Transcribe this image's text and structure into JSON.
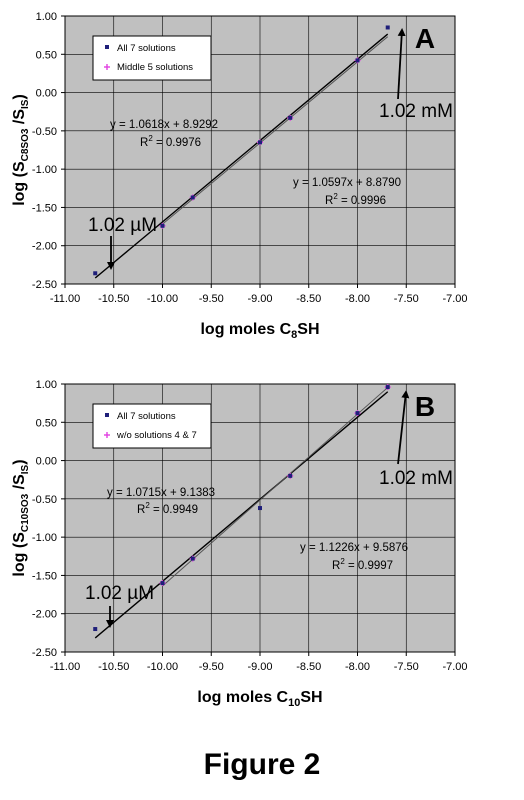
{
  "figure_label": "Figure 2",
  "colors": {
    "plot_bg": "#c0c0c0",
    "series_all": "#1f1f7a",
    "series_subset": "#e040e0",
    "fit_all": "#000000",
    "fit_subset": "#555555"
  },
  "chart_data": [
    {
      "type": "scatter",
      "panel_label": "A",
      "xlabel": "log moles C8SH",
      "ylabel": "log (SC8SO3 /SIS)",
      "xlim": [
        -11.0,
        -7.0
      ],
      "ylim": [
        -2.5,
        1.0
      ],
      "x_ticks": [
        "-11.00",
        "-10.50",
        "-10.00",
        "-9.50",
        "-9.00",
        "-8.50",
        "-8.00",
        "-7.50",
        "-7.00"
      ],
      "y_ticks": [
        "1.00",
        "0.50",
        "0.00",
        "-0.50",
        "-1.00",
        "-1.50",
        "-2.00",
        "-2.50"
      ],
      "grid": true,
      "legend_position": "top-left",
      "series": [
        {
          "name": "All 7 solutions",
          "x": [
            -10.69,
            -10.0,
            -9.69,
            -9.0,
            -8.69,
            -8.0,
            -7.69
          ],
          "y": [
            -2.36,
            -1.74,
            -1.37,
            -0.65,
            -0.33,
            0.42,
            0.85
          ]
        },
        {
          "name": "Middle 5 solutions",
          "x": [
            -10.0,
            -9.69,
            -9.0,
            -8.69,
            -8.0
          ],
          "y": [
            -1.74,
            -1.37,
            -0.65,
            -0.33,
            0.42
          ]
        }
      ],
      "fits": [
        {
          "equation": "y = 1.0618x + 8.9292",
          "r2_label": "R",
          "r2_value": " = 0.9976",
          "slope": 1.0618,
          "intercept": 8.9292,
          "x_range": [
            -10.69,
            -7.69
          ]
        },
        {
          "equation": "y = 1.0597x + 8.8790",
          "r2_label": "R",
          "r2_value": " = 0.9996",
          "slope": 1.0597,
          "intercept": 8.879,
          "x_range": [
            -10.0,
            -7.69
          ]
        }
      ],
      "annotations": [
        "1.02 µM",
        "1.02 mM"
      ]
    },
    {
      "type": "scatter",
      "panel_label": "B",
      "xlabel": "log moles C10SH",
      "ylabel": "log (SC10SO3 /SIS)",
      "xlim": [
        -11.0,
        -7.0
      ],
      "ylim": [
        -2.5,
        1.0
      ],
      "x_ticks": [
        "-11.00",
        "-10.50",
        "-10.00",
        "-9.50",
        "-9.00",
        "-8.50",
        "-8.00",
        "-7.50",
        "-7.00"
      ],
      "y_ticks": [
        "1.00",
        "0.50",
        "0.00",
        "-0.50",
        "-1.00",
        "-1.50",
        "-2.00",
        "-2.50"
      ],
      "grid": true,
      "legend_position": "top-left",
      "series": [
        {
          "name": "All 7 solutions",
          "x": [
            -10.69,
            -10.0,
            -9.69,
            -9.0,
            -8.69,
            -8.0,
            -7.69
          ],
          "y": [
            -2.2,
            -1.6,
            -1.28,
            -0.62,
            -0.2,
            0.62,
            0.96
          ]
        },
        {
          "name": "w/o solutions 4 & 7",
          "x": [
            -10.0,
            -9.69,
            -8.69,
            -8.0,
            -7.69
          ],
          "y": [
            -1.6,
            -1.28,
            -0.2,
            0.62,
            0.96
          ]
        }
      ],
      "fits": [
        {
          "equation": "y = 1.0715x + 9.1383",
          "r2_label": "R",
          "r2_value": " = 0.9949",
          "slope": 1.0715,
          "intercept": 9.1383,
          "x_range": [
            -10.69,
            -7.69
          ]
        },
        {
          "equation": "y = 1.1226x + 9.5876",
          "r2_label": "R",
          "r2_value": " = 0.9997",
          "slope": 1.1226,
          "intercept": 9.5876,
          "x_range": [
            -10.0,
            -7.69
          ]
        }
      ],
      "annotations": [
        "1.02 µM",
        "1.02 mM"
      ]
    }
  ]
}
